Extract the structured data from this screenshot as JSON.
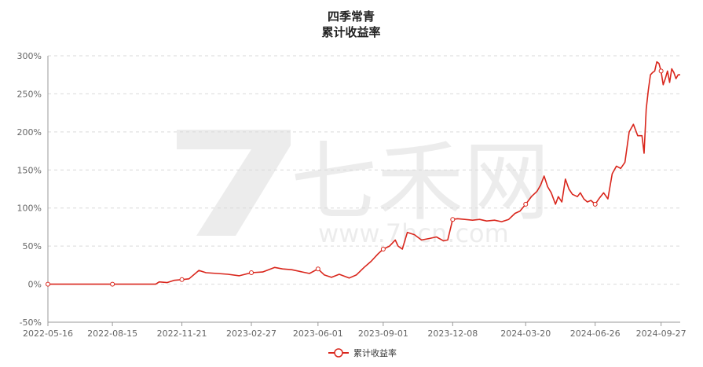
{
  "chart_data": {
    "type": "line",
    "title": "四季常青",
    "subtitle": "累计收益率",
    "xlabel": "",
    "ylabel": "",
    "ylim": [
      -50,
      300
    ],
    "y_unit": "%",
    "y_ticks": [
      -50,
      0,
      50,
      100,
      150,
      200,
      250,
      300
    ],
    "y_tick_labels": [
      "-50%",
      "0%",
      "50%",
      "100%",
      "150%",
      "200%",
      "250%",
      "300%"
    ],
    "x_tick_labels": [
      "2022-05-16",
      "2022-08-15",
      "2022-11-21",
      "2023-02-27",
      "2023-06-01",
      "2023-09-01",
      "2023-12-08",
      "2024-03-20",
      "2024-06-26",
      "2024-09-27"
    ],
    "grid": "horizontal-dashed",
    "legend_position": "bottom-center",
    "watermark": "七禾网 www.7hcn.com",
    "colors": {
      "series": "#d9261c",
      "grid": "#d9d9d9",
      "axis": "#999999"
    },
    "series": [
      {
        "name": "累计收益率",
        "x": [
          "2022-05-16",
          "2022-08-15",
          "2022-10-15",
          "2022-10-20",
          "2022-10-31",
          "2022-11-10",
          "2022-11-21",
          "2022-12-01",
          "2022-12-15",
          "2022-12-25",
          "2023-01-10",
          "2023-01-25",
          "2023-02-10",
          "2023-02-27",
          "2023-03-15",
          "2023-04-01",
          "2023-04-12",
          "2023-04-25",
          "2023-05-10",
          "2023-05-20",
          "2023-06-01",
          "2023-06-10",
          "2023-06-20",
          "2023-07-01",
          "2023-07-15",
          "2023-07-25",
          "2023-08-05",
          "2023-08-15",
          "2023-08-25",
          "2023-09-01",
          "2023-09-10",
          "2023-09-18",
          "2023-09-22",
          "2023-09-28",
          "2023-10-05",
          "2023-10-15",
          "2023-10-25",
          "2023-11-05",
          "2023-11-15",
          "2023-11-25",
          "2023-12-01",
          "2023-12-08",
          "2023-12-15",
          "2023-12-25",
          "2024-01-05",
          "2024-01-15",
          "2024-01-25",
          "2024-02-05",
          "2024-02-15",
          "2024-02-25",
          "2024-03-05",
          "2024-03-12",
          "2024-03-20",
          "2024-03-28",
          "2024-04-05",
          "2024-04-10",
          "2024-04-15",
          "2024-04-20",
          "2024-04-25",
          "2024-05-01",
          "2024-05-05",
          "2024-05-10",
          "2024-05-15",
          "2024-05-20",
          "2024-05-25",
          "2024-06-01",
          "2024-06-05",
          "2024-06-10",
          "2024-06-15",
          "2024-06-20",
          "2024-06-26",
          "2024-07-02",
          "2024-07-08",
          "2024-07-14",
          "2024-07-20",
          "2024-07-26",
          "2024-08-01",
          "2024-08-07",
          "2024-08-13",
          "2024-08-19",
          "2024-08-25",
          "2024-08-31",
          "2024-09-03",
          "2024-09-06",
          "2024-09-09",
          "2024-09-12",
          "2024-09-15",
          "2024-09-18",
          "2024-09-21",
          "2024-09-24",
          "2024-09-27",
          "2024-09-30",
          "2024-10-03",
          "2024-10-06",
          "2024-10-09",
          "2024-10-12",
          "2024-10-15",
          "2024-10-18",
          "2024-10-21",
          "2024-10-24"
        ],
        "values": [
          0,
          0,
          0,
          3,
          2,
          5,
          6,
          7,
          18,
          15,
          14,
          13,
          11,
          15,
          16,
          22,
          20,
          19,
          16,
          14,
          20,
          12,
          9,
          13,
          8,
          12,
          22,
          30,
          40,
          46,
          50,
          58,
          50,
          46,
          68,
          65,
          58,
          60,
          62,
          57,
          58,
          85,
          86,
          85,
          84,
          85,
          83,
          84,
          82,
          85,
          93,
          96,
          105,
          115,
          122,
          130,
          142,
          128,
          120,
          105,
          115,
          108,
          138,
          125,
          118,
          115,
          120,
          112,
          108,
          110,
          105,
          113,
          120,
          112,
          145,
          155,
          152,
          160,
          200,
          210,
          195,
          195,
          172,
          230,
          255,
          275,
          278,
          280,
          292,
          290,
          280,
          262,
          270,
          280,
          265,
          283,
          278,
          270,
          275,
          275
        ]
      }
    ]
  }
}
